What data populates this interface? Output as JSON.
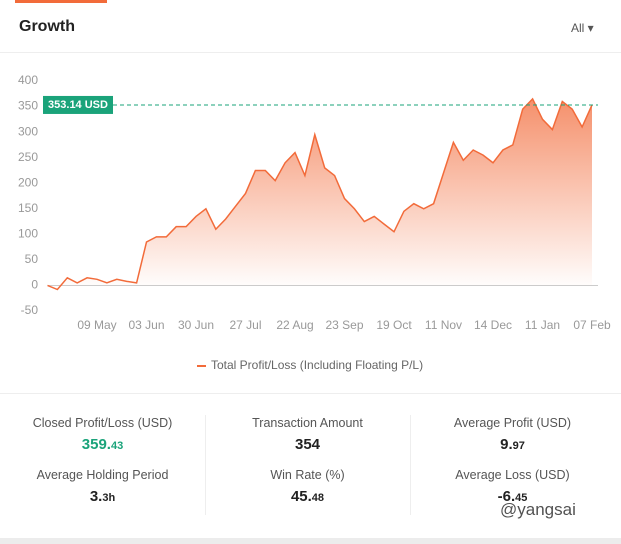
{
  "header": {
    "title": "Growth",
    "filter": "All"
  },
  "chart_data": {
    "type": "area-line",
    "categories": [
      null,
      null,
      null,
      null,
      null,
      "09 May",
      null,
      null,
      null,
      null,
      "03 Jun",
      null,
      null,
      null,
      null,
      "30 Jun",
      null,
      null,
      null,
      null,
      "27 Jul",
      null,
      null,
      null,
      null,
      "22 Aug",
      null,
      null,
      null,
      null,
      "23 Sep",
      null,
      null,
      null,
      null,
      "19 Oct",
      null,
      null,
      null,
      null,
      "11 Nov",
      null,
      null,
      null,
      null,
      "14 Dec",
      null,
      null,
      null,
      null,
      "11 Jan",
      null,
      null,
      null,
      null,
      "07 Feb"
    ],
    "series": [
      {
        "name": "Total Profit/Loss (Including Floating P/L)",
        "color": "#f26b3a",
        "values": [
          0,
          -8,
          15,
          5,
          15,
          12,
          5,
          12,
          8,
          5,
          85,
          95,
          95,
          115,
          115,
          135,
          150,
          110,
          130,
          155,
          180,
          225,
          225,
          205,
          240,
          260,
          215,
          295,
          230,
          215,
          170,
          150,
          125,
          135,
          120,
          105,
          145,
          160,
          150,
          160,
          220,
          280,
          245,
          265,
          255,
          240,
          265,
          275,
          345,
          365,
          325,
          305,
          360,
          345,
          310,
          353.14
        ]
      }
    ],
    "ylim": [
      -50,
      400
    ],
    "yticks": [
      -50,
      0,
      50,
      100,
      150,
      200,
      250,
      300,
      350,
      400
    ],
    "grid": false,
    "reference_line": {
      "value": 353.14,
      "label": "353.14 USD",
      "color": "#1aa37a"
    }
  },
  "stats": [
    {
      "label": "Closed Profit/Loss (USD)",
      "value": "359.43"
    },
    {
      "label": "Transaction Amount",
      "value": "354"
    },
    {
      "label": "Average Profit (USD)",
      "value": "9.97"
    },
    {
      "label": "Average Holding Period",
      "value": "3.3h"
    },
    {
      "label": "Win Rate (%)",
      "value": "45.48"
    },
    {
      "label": "Average Loss (USD)",
      "value": "-6.45"
    }
  ],
  "watermark": "@yangsai"
}
